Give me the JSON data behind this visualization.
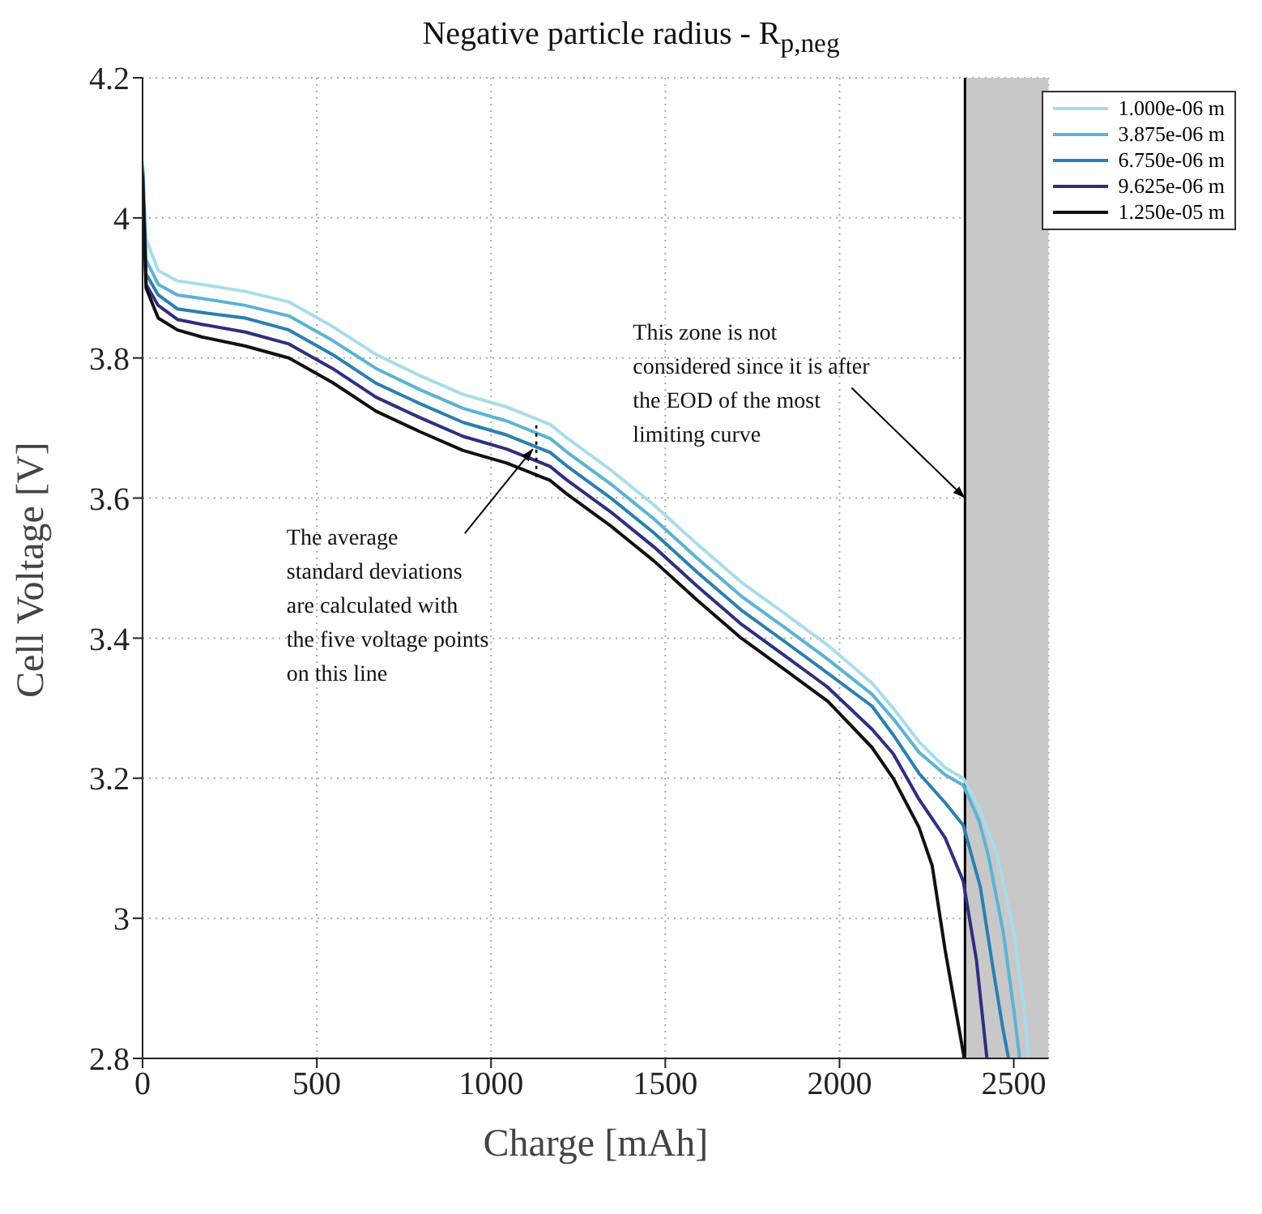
{
  "chart_data": {
    "type": "line",
    "title": "Negative particle radius - R$_{p,neg}$",
    "xlabel": "Charge [mAh]",
    "ylabel": "Cell Voltage [V]",
    "xlim": [
      0,
      2600
    ],
    "xticks": [
      0,
      500,
      1000,
      1500,
      2000,
      2500
    ],
    "ylim": [
      2.8,
      4.2
    ],
    "yticks": [
      2.8,
      3,
      3.2,
      3.4,
      3.6,
      3.8,
      4,
      4.2
    ],
    "grid": true,
    "legend": "top right",
    "marker": "none",
    "line_style": "solid",
    "series": [
      {
        "name": "1.000e-06 m",
        "color": "#a8dcea",
        "x": [
          0,
          10,
          45,
          100,
          170,
          295,
          420,
          545,
          670,
          795,
          920,
          1045,
          1170,
          1217,
          1344,
          1468,
          1592,
          1718,
          1843,
          1966,
          2093,
          2154,
          2228,
          2303,
          2355,
          2400,
          2453,
          2500,
          2530,
          2543
        ],
        "values": [
          4.08,
          3.97,
          3.925,
          3.91,
          3.905,
          3.895,
          3.88,
          3.845,
          3.805,
          3.775,
          3.748,
          3.73,
          3.705,
          3.686,
          3.64,
          3.59,
          3.534,
          3.48,
          3.435,
          3.39,
          3.336,
          3.3,
          3.252,
          3.215,
          3.2,
          3.16,
          3.09,
          2.98,
          2.87,
          2.8
        ]
      },
      {
        "name": "3.875e-06 m",
        "color": "#5bb3d3",
        "x": [
          0,
          10,
          45,
          100,
          170,
          295,
          420,
          545,
          670,
          795,
          920,
          1045,
          1170,
          1217,
          1344,
          1468,
          1592,
          1718,
          1843,
          1966,
          2093,
          2154,
          2228,
          2303,
          2355,
          2400,
          2427,
          2470,
          2500,
          2517
        ],
        "values": [
          4.075,
          3.94,
          3.905,
          3.89,
          3.885,
          3.875,
          3.86,
          3.825,
          3.785,
          3.755,
          3.728,
          3.71,
          3.685,
          3.666,
          3.62,
          3.57,
          3.514,
          3.46,
          3.415,
          3.37,
          3.32,
          3.285,
          3.237,
          3.205,
          3.19,
          3.14,
          3.09,
          2.98,
          2.87,
          2.8
        ]
      },
      {
        "name": "6.750e-06 m",
        "color": "#2a7fb0",
        "x": [
          0,
          10,
          45,
          100,
          170,
          295,
          420,
          545,
          670,
          795,
          920,
          1045,
          1170,
          1217,
          1344,
          1468,
          1592,
          1718,
          1843,
          1966,
          2093,
          2154,
          2228,
          2303,
          2355,
          2404,
          2440,
          2468,
          2485
        ],
        "values": [
          4.07,
          3.92,
          3.89,
          3.87,
          3.865,
          3.857,
          3.84,
          3.805,
          3.764,
          3.735,
          3.708,
          3.69,
          3.665,
          3.646,
          3.6,
          3.55,
          3.494,
          3.44,
          3.395,
          3.35,
          3.303,
          3.262,
          3.207,
          3.165,
          3.133,
          3.045,
          2.93,
          2.845,
          2.8
        ]
      },
      {
        "name": "9.625e-06 m",
        "color": "#2e2f7f",
        "x": [
          0,
          10,
          45,
          100,
          170,
          295,
          420,
          545,
          670,
          795,
          920,
          1045,
          1170,
          1217,
          1344,
          1468,
          1592,
          1718,
          1843,
          1966,
          2093,
          2154,
          2228,
          2303,
          2355,
          2393,
          2423
        ],
        "values": [
          4.065,
          3.905,
          3.875,
          3.855,
          3.848,
          3.837,
          3.82,
          3.785,
          3.744,
          3.715,
          3.688,
          3.67,
          3.645,
          3.626,
          3.58,
          3.53,
          3.474,
          3.42,
          3.375,
          3.33,
          3.27,
          3.235,
          3.17,
          3.115,
          3.053,
          2.94,
          2.8
        ]
      },
      {
        "name": "1.250e-05 m",
        "color": "#111111",
        "x": [
          0,
          10,
          45,
          100,
          170,
          295,
          420,
          545,
          670,
          795,
          920,
          1045,
          1170,
          1217,
          1344,
          1468,
          1592,
          1718,
          1843,
          1966,
          2093,
          2154,
          2228,
          2266,
          2303,
          2358
        ],
        "values": [
          4.06,
          3.9,
          3.857,
          3.84,
          3.83,
          3.817,
          3.8,
          3.765,
          3.724,
          3.695,
          3.668,
          3.65,
          3.625,
          3.606,
          3.56,
          3.51,
          3.454,
          3.4,
          3.355,
          3.31,
          3.244,
          3.2,
          3.13,
          3.075,
          2.955,
          2.8
        ]
      },
      {
        "color": "#000000",
        "line_style": "dotted",
        "x": [
          1130,
          1130
        ],
        "values": [
          3.63,
          3.71
        ]
      }
    ],
    "ref_lines": [
      {
        "axis": "x",
        "value": 2360,
        "color": "#000000",
        "line_style": "solid"
      }
    ],
    "bands": [
      {
        "axis": "x",
        "from": 2360,
        "to": 2600,
        "color": "#c8c8c8"
      }
    ],
    "annotations": [
      {
        "text": "The average\nstandard deviations\nare calculated with\nthe five voltage points\non this line",
        "x": 1120,
        "y": 3.67
      },
      {
        "text": "This zone is not\nconsidered since it is after\nthe EOD of the most\nlimiting curve",
        "x": 2360,
        "y": 3.6
      }
    ]
  }
}
